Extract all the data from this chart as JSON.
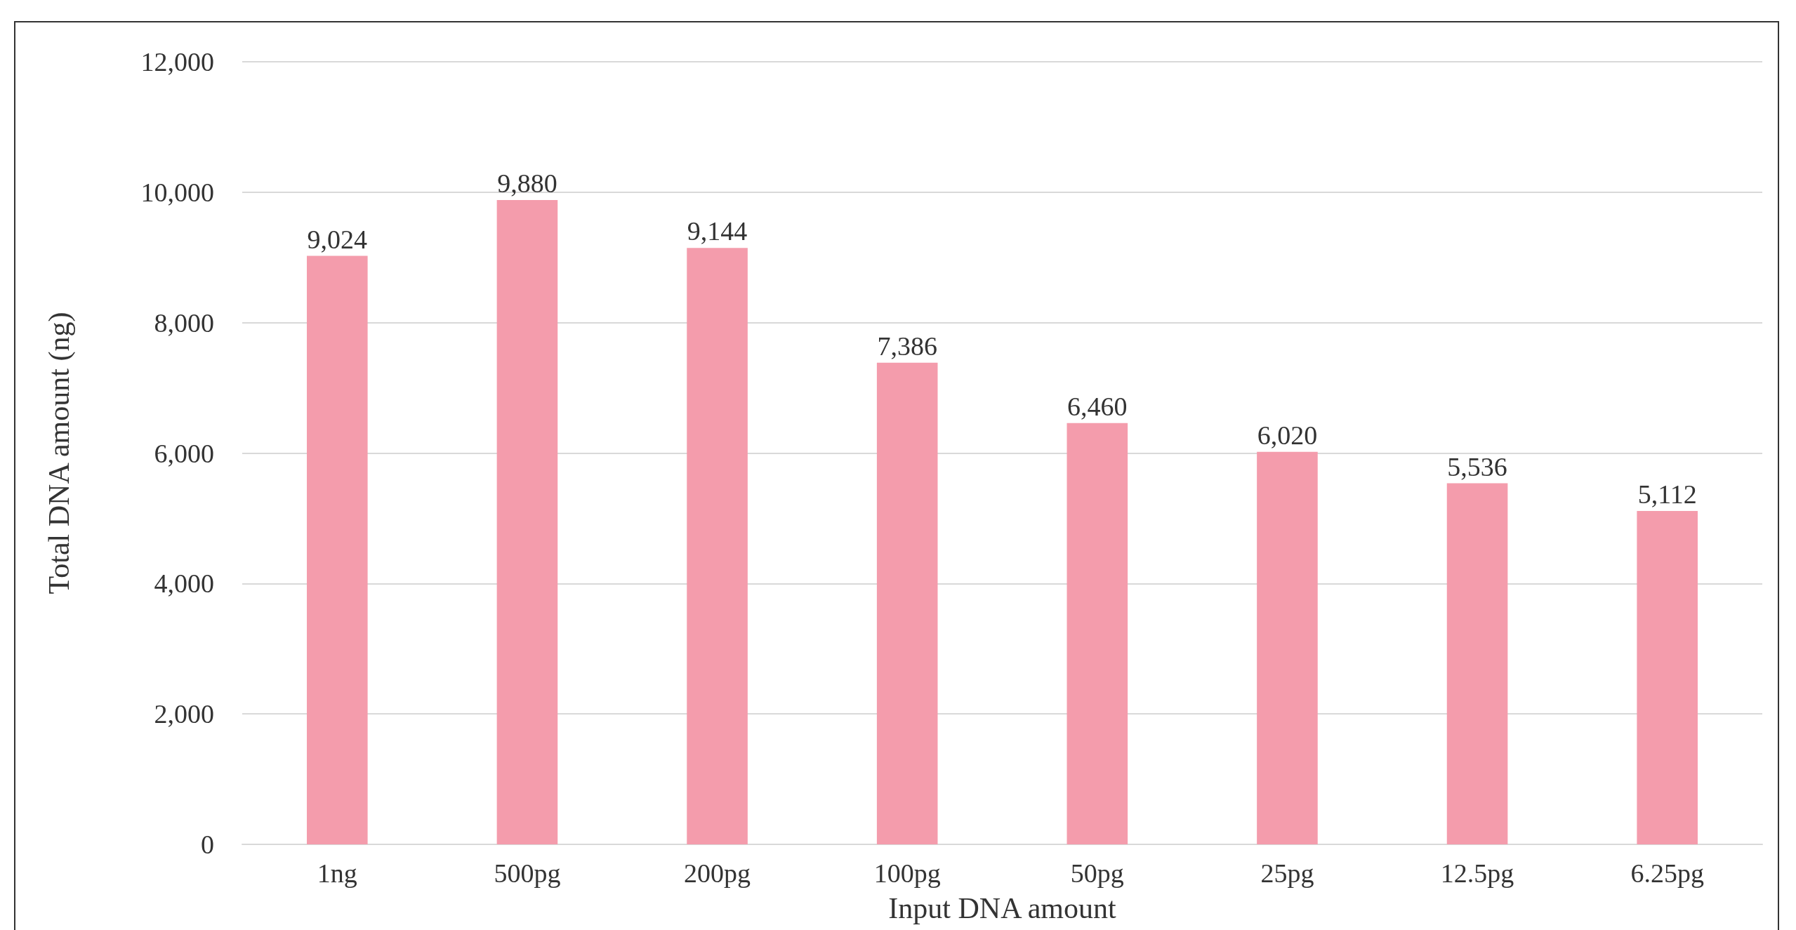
{
  "chart_data": {
    "type": "bar",
    "xlabel": "Input DNA amount",
    "ylabel": "Total DNA amount (ng)",
    "categories": [
      "1ng",
      "500pg",
      "200pg",
      "100pg",
      "50pg",
      "25pg",
      "12.5pg",
      "6.25pg"
    ],
    "values": [
      9024,
      9880,
      9144,
      7386,
      6460,
      6020,
      5536,
      5112
    ],
    "color": "#f49cac",
    "value_labels": [
      "9,024",
      "9,880",
      "9,144",
      "7,386",
      "6,460",
      "6,020",
      "5,536",
      "5,112"
    ],
    "ylim": [
      0,
      12000
    ],
    "yticks": [
      0,
      {
        "value": 2000,
        "label": "2,000"
      },
      {
        "value": 4000,
        "label": "4,000"
      },
      {
        "value": 6000,
        "label": "6,000"
      },
      {
        "value": 8000,
        "label": "8,000"
      },
      {
        "value": 10000,
        "label": "10,000"
      },
      {
        "value": 12000,
        "label": "12,000"
      }
    ],
    "grid": "y"
  }
}
